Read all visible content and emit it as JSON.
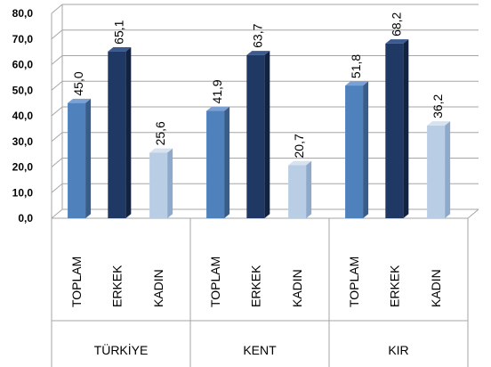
{
  "chart_data": {
    "type": "bar",
    "groups": [
      "TÜRKİYE",
      "KENT",
      "KIR"
    ],
    "subcategories": [
      "TOPLAM",
      "ERKEK",
      "KADIN"
    ],
    "values": [
      [
        45.0,
        65.1,
        25.6
      ],
      [
        41.9,
        63.7,
        20.7
      ],
      [
        51.8,
        68.2,
        36.2
      ]
    ],
    "data_labels": [
      [
        "45,0",
        "65,1",
        "25,6"
      ],
      [
        "41,9",
        "63,7",
        "20,7"
      ],
      [
        "51,8",
        "68,2",
        "36,2"
      ]
    ],
    "yticks": [
      "0,0",
      "10,0",
      "20,0",
      "30,0",
      "40,0",
      "50,0",
      "60,0",
      "70,0",
      "80,0"
    ],
    "ylim": [
      0,
      80
    ],
    "colors": {
      "TOPLAM": {
        "front": "#4f81bd",
        "side": "#385d8a",
        "top": "#7aa0d4"
      },
      "ERKEK": {
        "front": "#1f3864",
        "side": "#13233f",
        "top": "#3a5a90"
      },
      "KADIN": {
        "front": "#b9cde5",
        "side": "#8ea9c9",
        "top": "#d6e2f0"
      }
    },
    "grid": true,
    "title": "",
    "xlabel": "",
    "ylabel": ""
  }
}
